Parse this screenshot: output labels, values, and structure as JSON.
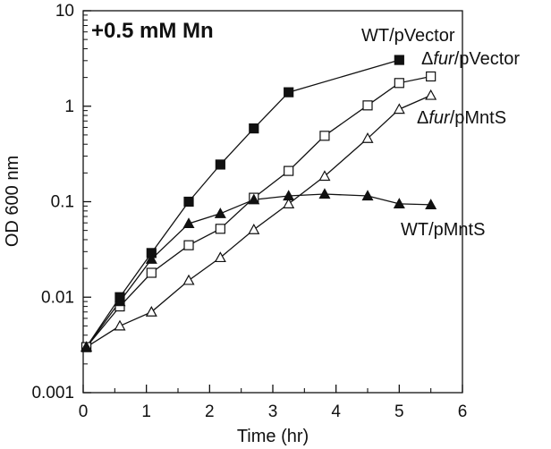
{
  "chart_data": {
    "type": "line",
    "title": "+0.5 mM Mn",
    "xlabel": "Time (hr)",
    "ylabel": "OD 600 nm",
    "xlim": [
      0,
      6
    ],
    "ylim": [
      0.001,
      10
    ],
    "yscale": "log",
    "grid": false,
    "x_ticks": [
      0,
      1,
      2,
      3,
      4,
      5,
      6
    ],
    "x_tick_labels": [
      "0",
      "1",
      "2",
      "3",
      "4",
      "5",
      "6"
    ],
    "y_ticks": [
      0.001,
      0.01,
      0.1,
      1,
      10
    ],
    "y_tick_labels": [
      "0.001",
      "0.01",
      "0.1",
      "1",
      "10"
    ],
    "series": [
      {
        "name": "WT/pVector",
        "label_parts": [
          {
            "text": "WT/pVector",
            "italic": false
          }
        ],
        "marker": "square",
        "filled": true,
        "x": [
          0.05,
          0.58,
          1.08,
          1.67,
          2.17,
          2.7,
          3.25,
          5.0
        ],
        "y": [
          0.003,
          0.01,
          0.029,
          0.1,
          0.245,
          0.585,
          1.4,
          3.05
        ]
      },
      {
        "name": "Δfur/pVector",
        "label_parts": [
          {
            "text": "Δ",
            "italic": false
          },
          {
            "text": "fur",
            "italic": true
          },
          {
            "text": "/pVector",
            "italic": false
          }
        ],
        "marker": "square",
        "filled": false,
        "x": [
          0.05,
          0.58,
          1.08,
          1.67,
          2.17,
          2.7,
          3.25,
          3.82,
          4.5,
          5.0,
          5.5
        ],
        "y": [
          0.003,
          0.008,
          0.018,
          0.035,
          0.052,
          0.11,
          0.21,
          0.49,
          1.02,
          1.75,
          2.05
        ]
      },
      {
        "name": "Δfur/pMntS",
        "label_parts": [
          {
            "text": "Δ",
            "italic": false
          },
          {
            "text": "fur",
            "italic": true
          },
          {
            "text": "/pMntS",
            "italic": false
          }
        ],
        "marker": "triangle",
        "filled": false,
        "x": [
          0.05,
          0.58,
          1.08,
          1.67,
          2.17,
          2.7,
          3.25,
          3.82,
          4.5,
          5.0,
          5.5
        ],
        "y": [
          0.003,
          0.005,
          0.007,
          0.015,
          0.026,
          0.051,
          0.095,
          0.185,
          0.46,
          0.93,
          1.3
        ]
      },
      {
        "name": "WT/pMntS",
        "label_parts": [
          {
            "text": "WT/pMntS",
            "italic": false
          }
        ],
        "marker": "triangle",
        "filled": true,
        "x": [
          0.05,
          0.58,
          1.08,
          1.67,
          2.17,
          2.7,
          3.25,
          3.82,
          4.5,
          5.0,
          5.5
        ],
        "y": [
          0.003,
          0.009,
          0.025,
          0.059,
          0.075,
          0.105,
          0.115,
          0.12,
          0.115,
          0.095,
          0.093
        ]
      }
    ]
  }
}
